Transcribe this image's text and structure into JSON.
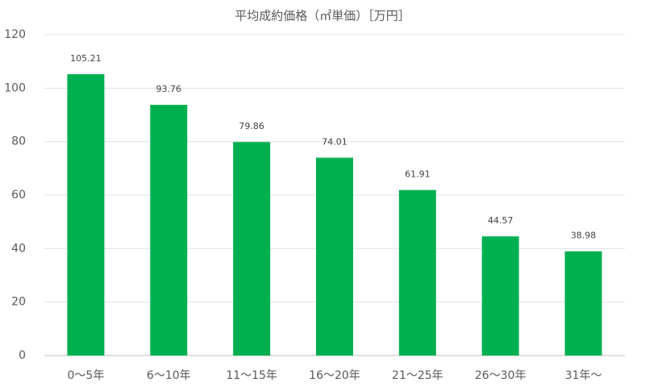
{
  "chart_data": {
    "type": "bar",
    "title": "平均成約価格（㎡単価）［万円］",
    "categories": [
      "0～5年",
      "6～10年",
      "11～15年",
      "16～20年",
      "21～25年",
      "26～30年",
      "31年～"
    ],
    "values": [
      105.21,
      93.76,
      79.86,
      74.01,
      61.91,
      44.57,
      38.98
    ],
    "color": "#00b050",
    "ylim": [
      0,
      120
    ],
    "yticks": [
      0,
      20,
      40,
      60,
      80,
      100,
      120
    ],
    "grid": true
  }
}
